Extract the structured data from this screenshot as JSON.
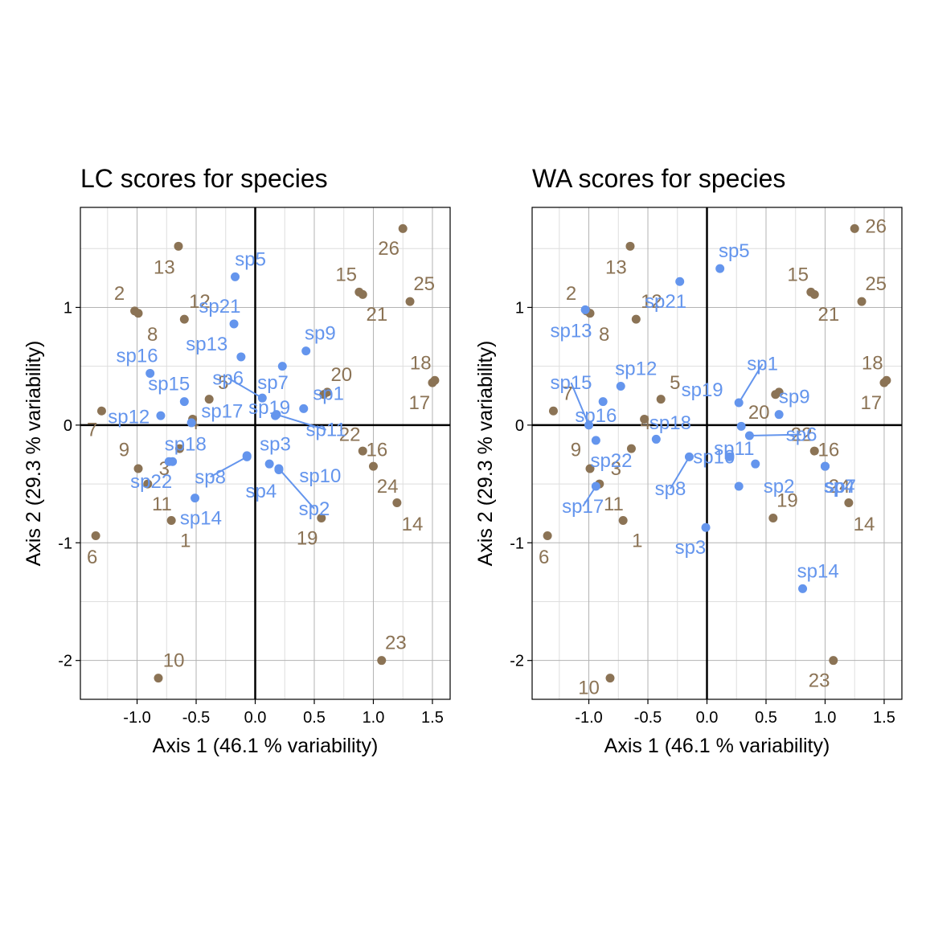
{
  "colors": {
    "site": "#8B7355",
    "species": "#6495ED",
    "grid_major": "#b3b3b3",
    "grid_minor": "#dedede",
    "frame": "#000000"
  },
  "chart_data": [
    {
      "type": "scatter",
      "title": "LC scores for species",
      "xlabel": "Axis 1 (46.1 % variability)",
      "ylabel": "Axis 2 (29.3 % variability)",
      "xlim": [
        -1.48,
        1.65
      ],
      "ylim": [
        -2.33,
        1.85
      ],
      "xticks": [
        -1.0,
        -0.5,
        0.0,
        0.5,
        1.0,
        1.5
      ],
      "xtick_labels": [
        "-1.0",
        "-0.5",
        "0.0",
        "0.5",
        "1.0",
        "1.5"
      ],
      "yticks": [
        -2,
        -1,
        0,
        1
      ],
      "ytick_labels": [
        "-2",
        "-1",
        "0",
        "1"
      ],
      "grid": true,
      "sites": [
        {
          "label": "1",
          "x": -0.71,
          "y": -0.81,
          "lx": -0.59,
          "ly": -0.98
        },
        {
          "label": "2",
          "x": -1.02,
          "y": 0.97,
          "lx": -1.15,
          "ly": 1.12
        },
        {
          "label": "3",
          "x": -0.64,
          "y": -0.2,
          "lx": -0.77,
          "ly": -0.37
        },
        {
          "label": "4",
          "x": -0.53,
          "y": 0.05,
          "lx": -0.52,
          "ly": 0.02
        },
        {
          "label": "5",
          "x": -0.39,
          "y": 0.22,
          "lx": -0.27,
          "ly": 0.36
        },
        {
          "label": "6",
          "x": -1.35,
          "y": -0.94,
          "lx": -1.38,
          "ly": -1.12
        },
        {
          "label": "7",
          "x": -1.3,
          "y": 0.12,
          "lx": -1.38,
          "ly": -0.04
        },
        {
          "label": "8",
          "x": -0.99,
          "y": 0.95,
          "lx": -0.87,
          "ly": 0.77
        },
        {
          "label": "9",
          "x": -0.99,
          "y": -0.37,
          "lx": -1.11,
          "ly": -0.21
        },
        {
          "label": "10",
          "x": -0.82,
          "y": -2.15,
          "lx": -0.69,
          "ly": -2.0
        },
        {
          "label": "11",
          "x": -0.91,
          "y": -0.5,
          "lx": -0.79,
          "ly": -0.67
        },
        {
          "label": "12",
          "x": -0.6,
          "y": 0.9,
          "lx": -0.47,
          "ly": 1.05
        },
        {
          "label": "13",
          "x": -0.65,
          "y": 1.52,
          "lx": -0.77,
          "ly": 1.34
        },
        {
          "label": "14",
          "x": 1.2,
          "y": -0.66,
          "lx": 1.33,
          "ly": -0.84
        },
        {
          "label": "15",
          "x": 0.88,
          "y": 1.13,
          "lx": 0.77,
          "ly": 1.28
        },
        {
          "label": "16",
          "x": 0.91,
          "y": -0.22,
          "lx": 1.03,
          "ly": -0.21
        },
        {
          "label": "17",
          "x": 1.5,
          "y": 0.36,
          "lx": 1.39,
          "ly": 0.19
        },
        {
          "label": "18",
          "x": 1.52,
          "y": 0.38,
          "lx": 1.4,
          "ly": 0.53
        },
        {
          "label": "19",
          "x": 0.56,
          "y": -0.79,
          "lx": 0.44,
          "ly": -0.96
        },
        {
          "label": "20",
          "x": 0.61,
          "y": 0.28,
          "lx": 0.73,
          "ly": 0.43
        },
        {
          "label": "21",
          "x": 0.91,
          "y": 1.11,
          "lx": 1.03,
          "ly": 0.94
        },
        {
          "label": "22",
          "x": 0.58,
          "y": 0.26,
          "lx": 0.8,
          "ly": -0.08
        },
        {
          "label": "23",
          "x": 1.07,
          "y": -2.0,
          "lx": 1.19,
          "ly": -1.85
        },
        {
          "label": "24",
          "x": 1.0,
          "y": -0.35,
          "lx": 1.12,
          "ly": -0.52
        },
        {
          "label": "25",
          "x": 1.31,
          "y": 1.05,
          "lx": 1.43,
          "ly": 1.2
        },
        {
          "label": "26",
          "x": 1.25,
          "y": 1.67,
          "lx": 1.13,
          "ly": 1.5
        }
      ],
      "species": [
        {
          "label": "sp1",
          "x": 0.41,
          "y": 0.14,
          "lx": 0.62,
          "ly": 0.27
        },
        {
          "label": "sp2",
          "x": 0.2,
          "y": -0.37,
          "lx": 0.5,
          "ly": -0.71,
          "leader": true
        },
        {
          "label": "sp3",
          "x": 0.12,
          "y": -0.33,
          "lx": 0.17,
          "ly": -0.16
        },
        {
          "label": "sp4",
          "x": -0.07,
          "y": -0.26,
          "lx": 0.05,
          "ly": -0.56
        },
        {
          "label": "sp5",
          "x": -0.17,
          "y": 1.26,
          "lx": -0.04,
          "ly": 1.41
        },
        {
          "label": "sp6",
          "x": 0.06,
          "y": 0.23,
          "lx": -0.23,
          "ly": 0.4,
          "leader": true
        },
        {
          "label": "sp7",
          "x": 0.23,
          "y": 0.5,
          "lx": 0.15,
          "ly": 0.36
        },
        {
          "label": "sp8",
          "x": -0.07,
          "y": -0.27,
          "lx": -0.38,
          "ly": -0.44,
          "leader": true
        },
        {
          "label": "sp9",
          "x": 0.43,
          "y": 0.63,
          "lx": 0.55,
          "ly": 0.78
        },
        {
          "label": "sp10",
          "x": 0.2,
          "y": -0.38,
          "lx": 0.55,
          "ly": -0.43
        },
        {
          "label": "sp11",
          "x": 0.18,
          "y": 0.09,
          "lx": 0.6,
          "ly": -0.04,
          "leader": true
        },
        {
          "label": "sp12",
          "x": -0.8,
          "y": 0.08,
          "lx": -1.07,
          "ly": 0.07
        },
        {
          "label": "sp13",
          "x": -0.12,
          "y": 0.58,
          "lx": -0.41,
          "ly": 0.69
        },
        {
          "label": "sp14",
          "x": -0.51,
          "y": -0.62,
          "lx": -0.46,
          "ly": -0.79
        },
        {
          "label": "sp15",
          "x": -0.6,
          "y": 0.2,
          "lx": -0.73,
          "ly": 0.35
        },
        {
          "label": "sp16",
          "x": -0.89,
          "y": 0.44,
          "lx": -1.0,
          "ly": 0.59
        },
        {
          "label": "sp17",
          "x": -0.54,
          "y": 0.02,
          "lx": -0.28,
          "ly": 0.12
        },
        {
          "label": "sp18",
          "x": -0.7,
          "y": -0.31,
          "lx": -0.59,
          "ly": -0.16
        },
        {
          "label": "sp19",
          "x": 0.17,
          "y": 0.08,
          "lx": 0.12,
          "ly": 0.15
        },
        {
          "label": "sp21",
          "x": -0.18,
          "y": 0.86,
          "lx": -0.3,
          "ly": 1.01
        },
        {
          "label": "sp22",
          "x": -0.73,
          "y": -0.31,
          "lx": -0.88,
          "ly": -0.48
        }
      ]
    },
    {
      "type": "scatter",
      "title": "WA scores for species",
      "xlabel": "Axis 1 (46.1 % variability)",
      "ylabel": "Axis 2 (29.3 % variability)",
      "xlim": [
        -1.48,
        1.65
      ],
      "ylim": [
        -2.33,
        1.85
      ],
      "xticks": [
        -1.0,
        -0.5,
        0.0,
        0.5,
        1.0,
        1.5
      ],
      "xtick_labels": [
        "-1.0",
        "-0.5",
        "0.0",
        "0.5",
        "1.0",
        "1.5"
      ],
      "yticks": [
        -2,
        -1,
        0,
        1
      ],
      "ytick_labels": [
        "-2",
        "-1",
        "0",
        "1"
      ],
      "grid": true,
      "sites": [
        {
          "label": "1",
          "x": -0.71,
          "y": -0.81,
          "lx": -0.59,
          "ly": -0.98
        },
        {
          "label": "2",
          "x": -1.02,
          "y": 0.97,
          "lx": -1.15,
          "ly": 1.12
        },
        {
          "label": "3",
          "x": -0.64,
          "y": -0.2,
          "lx": -0.77,
          "ly": -0.37
        },
        {
          "label": "4",
          "x": -0.53,
          "y": 0.05,
          "lx": -0.52,
          "ly": 0.02
        },
        {
          "label": "5",
          "x": -0.39,
          "y": 0.22,
          "lx": -0.27,
          "ly": 0.36
        },
        {
          "label": "6",
          "x": -1.35,
          "y": -0.94,
          "lx": -1.38,
          "ly": -1.12
        },
        {
          "label": "7",
          "x": -1.3,
          "y": 0.12,
          "lx": -1.18,
          "ly": 0.27
        },
        {
          "label": "8",
          "x": -0.99,
          "y": 0.95,
          "lx": -0.87,
          "ly": 0.77
        },
        {
          "label": "9",
          "x": -0.99,
          "y": -0.37,
          "lx": -1.11,
          "ly": -0.21
        },
        {
          "label": "10",
          "x": -0.82,
          "y": -2.15,
          "lx": -1.0,
          "ly": -2.23
        },
        {
          "label": "11",
          "x": -0.91,
          "y": -0.5,
          "lx": -0.79,
          "ly": -0.67
        },
        {
          "label": "12",
          "x": -0.6,
          "y": 0.9,
          "lx": -0.47,
          "ly": 1.05
        },
        {
          "label": "13",
          "x": -0.65,
          "y": 1.52,
          "lx": -0.77,
          "ly": 1.34
        },
        {
          "label": "14",
          "x": 1.2,
          "y": -0.66,
          "lx": 1.33,
          "ly": -0.84
        },
        {
          "label": "15",
          "x": 0.88,
          "y": 1.13,
          "lx": 0.77,
          "ly": 1.28
        },
        {
          "label": "16",
          "x": 0.91,
          "y": -0.22,
          "lx": 1.03,
          "ly": -0.21
        },
        {
          "label": "17",
          "x": 1.5,
          "y": 0.36,
          "lx": 1.39,
          "ly": 0.19
        },
        {
          "label": "18",
          "x": 1.52,
          "y": 0.38,
          "lx": 1.4,
          "ly": 0.53
        },
        {
          "label": "19",
          "x": 0.56,
          "y": -0.79,
          "lx": 0.68,
          "ly": -0.64
        },
        {
          "label": "20",
          "x": 0.61,
          "y": 0.28,
          "lx": 0.44,
          "ly": 0.11
        },
        {
          "label": "21",
          "x": 0.91,
          "y": 1.11,
          "lx": 1.03,
          "ly": 0.94
        },
        {
          "label": "22",
          "x": 0.58,
          "y": 0.26,
          "lx": 0.8,
          "ly": -0.08
        },
        {
          "label": "23",
          "x": 1.07,
          "y": -2.0,
          "lx": 0.95,
          "ly": -2.17
        },
        {
          "label": "24",
          "x": 1.0,
          "y": -0.35,
          "lx": 1.12,
          "ly": -0.52
        },
        {
          "label": "25",
          "x": 1.31,
          "y": 1.05,
          "lx": 1.43,
          "ly": 1.2
        },
        {
          "label": "26",
          "x": 1.25,
          "y": 1.67,
          "lx": 1.43,
          "ly": 1.69
        }
      ],
      "species": [
        {
          "label": "sp1",
          "x": 0.27,
          "y": 0.19,
          "lx": 0.47,
          "ly": 0.52,
          "leader": true
        },
        {
          "label": "sp2",
          "x": 0.27,
          "y": -0.52,
          "lx": 0.61,
          "ly": -0.52
        },
        {
          "label": "sp3",
          "x": -0.01,
          "y": -0.87,
          "lx": -0.14,
          "ly": -1.04
        },
        {
          "label": "sp4",
          "x": 1.0,
          "y": -0.35,
          "lx": 1.12,
          "ly": -0.52
        },
        {
          "label": "sp5",
          "x": 0.11,
          "y": 1.33,
          "lx": 0.23,
          "ly": 1.48
        },
        {
          "label": "sp6",
          "x": 0.36,
          "y": -0.09,
          "lx": 0.8,
          "ly": -0.08,
          "leader": true
        },
        {
          "label": "sp7",
          "x": 1.0,
          "y": -0.35,
          "lx": 1.13,
          "ly": -0.52
        },
        {
          "label": "sp8",
          "x": -0.15,
          "y": -0.27,
          "lx": -0.31,
          "ly": -0.54,
          "leader": true
        },
        {
          "label": "sp9",
          "x": 0.61,
          "y": 0.09,
          "lx": 0.74,
          "ly": 0.24
        },
        {
          "label": "sp10",
          "x": 0.19,
          "y": -0.27,
          "lx": 0.06,
          "ly": -0.27
        },
        {
          "label": "sp11",
          "x": 0.41,
          "y": -0.33,
          "lx": 0.23,
          "ly": -0.2
        },
        {
          "label": "sp12",
          "x": -0.73,
          "y": 0.33,
          "lx": -0.6,
          "ly": 0.48
        },
        {
          "label": "sp13",
          "x": -1.03,
          "y": 0.98,
          "lx": -1.15,
          "ly": 0.8
        },
        {
          "label": "sp14",
          "x": 0.81,
          "y": -1.39,
          "lx": 0.94,
          "ly": -1.24
        },
        {
          "label": "sp15",
          "x": -1.0,
          "y": 0.0,
          "lx": -1.15,
          "ly": 0.36,
          "leader": true
        },
        {
          "label": "sp16",
          "x": -0.94,
          "y": -0.13,
          "lx": -0.94,
          "ly": 0.08
        },
        {
          "label": "sp17",
          "x": -0.94,
          "y": -0.52,
          "lx": -1.05,
          "ly": -0.69,
          "leader": true
        },
        {
          "label": "sp18",
          "x": -0.43,
          "y": -0.12,
          "lx": -0.31,
          "ly": 0.02
        },
        {
          "label": "sp19",
          "x": 0.29,
          "y": -0.01,
          "lx": -0.04,
          "ly": 0.3
        },
        {
          "label": "sp21",
          "x": -0.23,
          "y": 1.22,
          "lx": -0.35,
          "ly": 1.05
        },
        {
          "label": "sp22",
          "x": -0.88,
          "y": 0.2,
          "lx": -0.81,
          "ly": -0.3
        }
      ]
    }
  ]
}
